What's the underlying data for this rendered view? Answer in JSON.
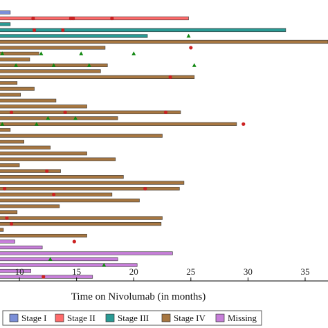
{
  "chart_data": {
    "type": "swimmer",
    "xlabel": "Time on Nivolumab (in months)",
    "xlim": [
      8.3,
      37
    ],
    "xticks": [
      10,
      15,
      20,
      25,
      30,
      35
    ],
    "legend": {
      "placement": "bottom",
      "entries": [
        {
          "label": "Stage I",
          "color": "#7b8fd8"
        },
        {
          "label": "Stage II",
          "color": "#ff6b6b"
        },
        {
          "label": "Stage III",
          "color": "#2a9a94"
        },
        {
          "label": "Stage IV",
          "color": "#a67641"
        },
        {
          "label": "Missing",
          "color": "#c77fd9"
        }
      ]
    },
    "marker_colors": {
      "circle": "#cc2222",
      "triangle": "#118811"
    },
    "bars": [
      {
        "end": 9.2,
        "stage": "Stage I",
        "circles": [],
        "triangles": []
      },
      {
        "end": 24.8,
        "stage": "Stage II",
        "circles": [
          11.2,
          14.5,
          14.7,
          18.1
        ],
        "triangles": []
      },
      {
        "end": 9.2,
        "stage": "Stage III",
        "circles": [],
        "triangles": []
      },
      {
        "end": 33.3,
        "stage": "Stage III",
        "circles": [
          11.3,
          13.8
        ],
        "triangles": []
      },
      {
        "end": 21.2,
        "stage": "Stage III",
        "circles": [],
        "triangles": [
          24.8
        ]
      },
      {
        "end": 37,
        "stage": "Stage IV",
        "circles": [],
        "triangles": []
      },
      {
        "end": 17.5,
        "stage": "Stage IV",
        "circles": [
          25.0
        ],
        "triangles": []
      },
      {
        "end": 11.7,
        "stage": "Stage IV",
        "circles": [],
        "triangles": [
          8.5,
          11.9,
          15.4,
          20.0
        ]
      },
      {
        "end": 10.9,
        "stage": "Stage IV",
        "circles": [],
        "triangles": []
      },
      {
        "end": 17.7,
        "stage": "Stage IV",
        "circles": [],
        "triangles": [
          9.7,
          13.0,
          16.1,
          25.3
        ]
      },
      {
        "end": 17.1,
        "stage": "Stage IV",
        "circles": [],
        "triangles": []
      },
      {
        "end": 25.3,
        "stage": "Stage IV",
        "circles": [
          23.2
        ],
        "triangles": []
      },
      {
        "end": 9.8,
        "stage": "Stage IV",
        "circles": [],
        "triangles": []
      },
      {
        "end": 11.3,
        "stage": "Stage IV",
        "circles": [],
        "triangles": []
      },
      {
        "end": 10.1,
        "stage": "Stage IV",
        "circles": [],
        "triangles": []
      },
      {
        "end": 13.2,
        "stage": "Stage IV",
        "circles": [],
        "triangles": []
      },
      {
        "end": 15.9,
        "stage": "Stage IV",
        "circles": [],
        "triangles": []
      },
      {
        "end": 24.1,
        "stage": "Stage IV",
        "circles": [
          9.3,
          14.0,
          22.8
        ],
        "triangles": []
      },
      {
        "end": 18.6,
        "stage": "Stage IV",
        "circles": [],
        "triangles": [
          12.5,
          14.9
        ]
      },
      {
        "end": 29.0,
        "stage": "Stage IV",
        "circles": [
          29.6
        ],
        "triangles": [
          8.5,
          11.5
        ]
      },
      {
        "end": 9.2,
        "stage": "Stage IV",
        "circles": [],
        "triangles": []
      },
      {
        "end": 22.5,
        "stage": "Stage IV",
        "circles": [],
        "triangles": []
      },
      {
        "end": 10.4,
        "stage": "Stage IV",
        "circles": [],
        "triangles": []
      },
      {
        "end": 12.7,
        "stage": "Stage IV",
        "circles": [],
        "triangles": []
      },
      {
        "end": 15.9,
        "stage": "Stage IV",
        "circles": [],
        "triangles": []
      },
      {
        "end": 18.4,
        "stage": "Stage IV",
        "circles": [],
        "triangles": []
      },
      {
        "end": 10.0,
        "stage": "Stage IV",
        "circles": [],
        "triangles": []
      },
      {
        "end": 13.6,
        "stage": "Stage IV",
        "circles": [
          12.4
        ],
        "triangles": []
      },
      {
        "end": 19.1,
        "stage": "Stage IV",
        "circles": [],
        "triangles": []
      },
      {
        "end": 24.4,
        "stage": "Stage IV",
        "circles": [],
        "triangles": []
      },
      {
        "end": 24.0,
        "stage": "Stage IV",
        "circles": [
          8.7,
          21.0
        ],
        "triangles": []
      },
      {
        "end": 18.1,
        "stage": "Stage IV",
        "circles": [
          13.0
        ],
        "triangles": []
      },
      {
        "end": 20.5,
        "stage": "Stage IV",
        "circles": [],
        "triangles": []
      },
      {
        "end": 13.5,
        "stage": "Stage IV",
        "circles": [],
        "triangles": []
      },
      {
        "end": 9.8,
        "stage": "Stage IV",
        "circles": [],
        "triangles": []
      },
      {
        "end": 22.5,
        "stage": "Stage IV",
        "circles": [
          8.9
        ],
        "triangles": []
      },
      {
        "end": 22.4,
        "stage": "Stage IV",
        "circles": [
          9.3
        ],
        "triangles": []
      },
      {
        "end": 8.6,
        "stage": "Stage IV",
        "circles": [],
        "triangles": []
      },
      {
        "end": 15.9,
        "stage": "Stage IV",
        "circles": [],
        "triangles": []
      },
      {
        "end": 9.6,
        "stage": "Missing",
        "circles": [
          14.8
        ],
        "triangles": []
      },
      {
        "end": 12.0,
        "stage": "Missing",
        "circles": [],
        "triangles": []
      },
      {
        "end": 23.4,
        "stage": "Missing",
        "circles": [],
        "triangles": []
      },
      {
        "end": 18.6,
        "stage": "Missing",
        "circles": [],
        "triangles": [
          12.7
        ]
      },
      {
        "end": 20.3,
        "stage": "Missing",
        "circles": [],
        "triangles": [
          17.4
        ]
      },
      {
        "end": 11.0,
        "stage": "Missing",
        "circles": [],
        "triangles": []
      },
      {
        "end": 16.4,
        "stage": "Missing",
        "circles": [
          12.1
        ],
        "triangles": []
      }
    ]
  }
}
